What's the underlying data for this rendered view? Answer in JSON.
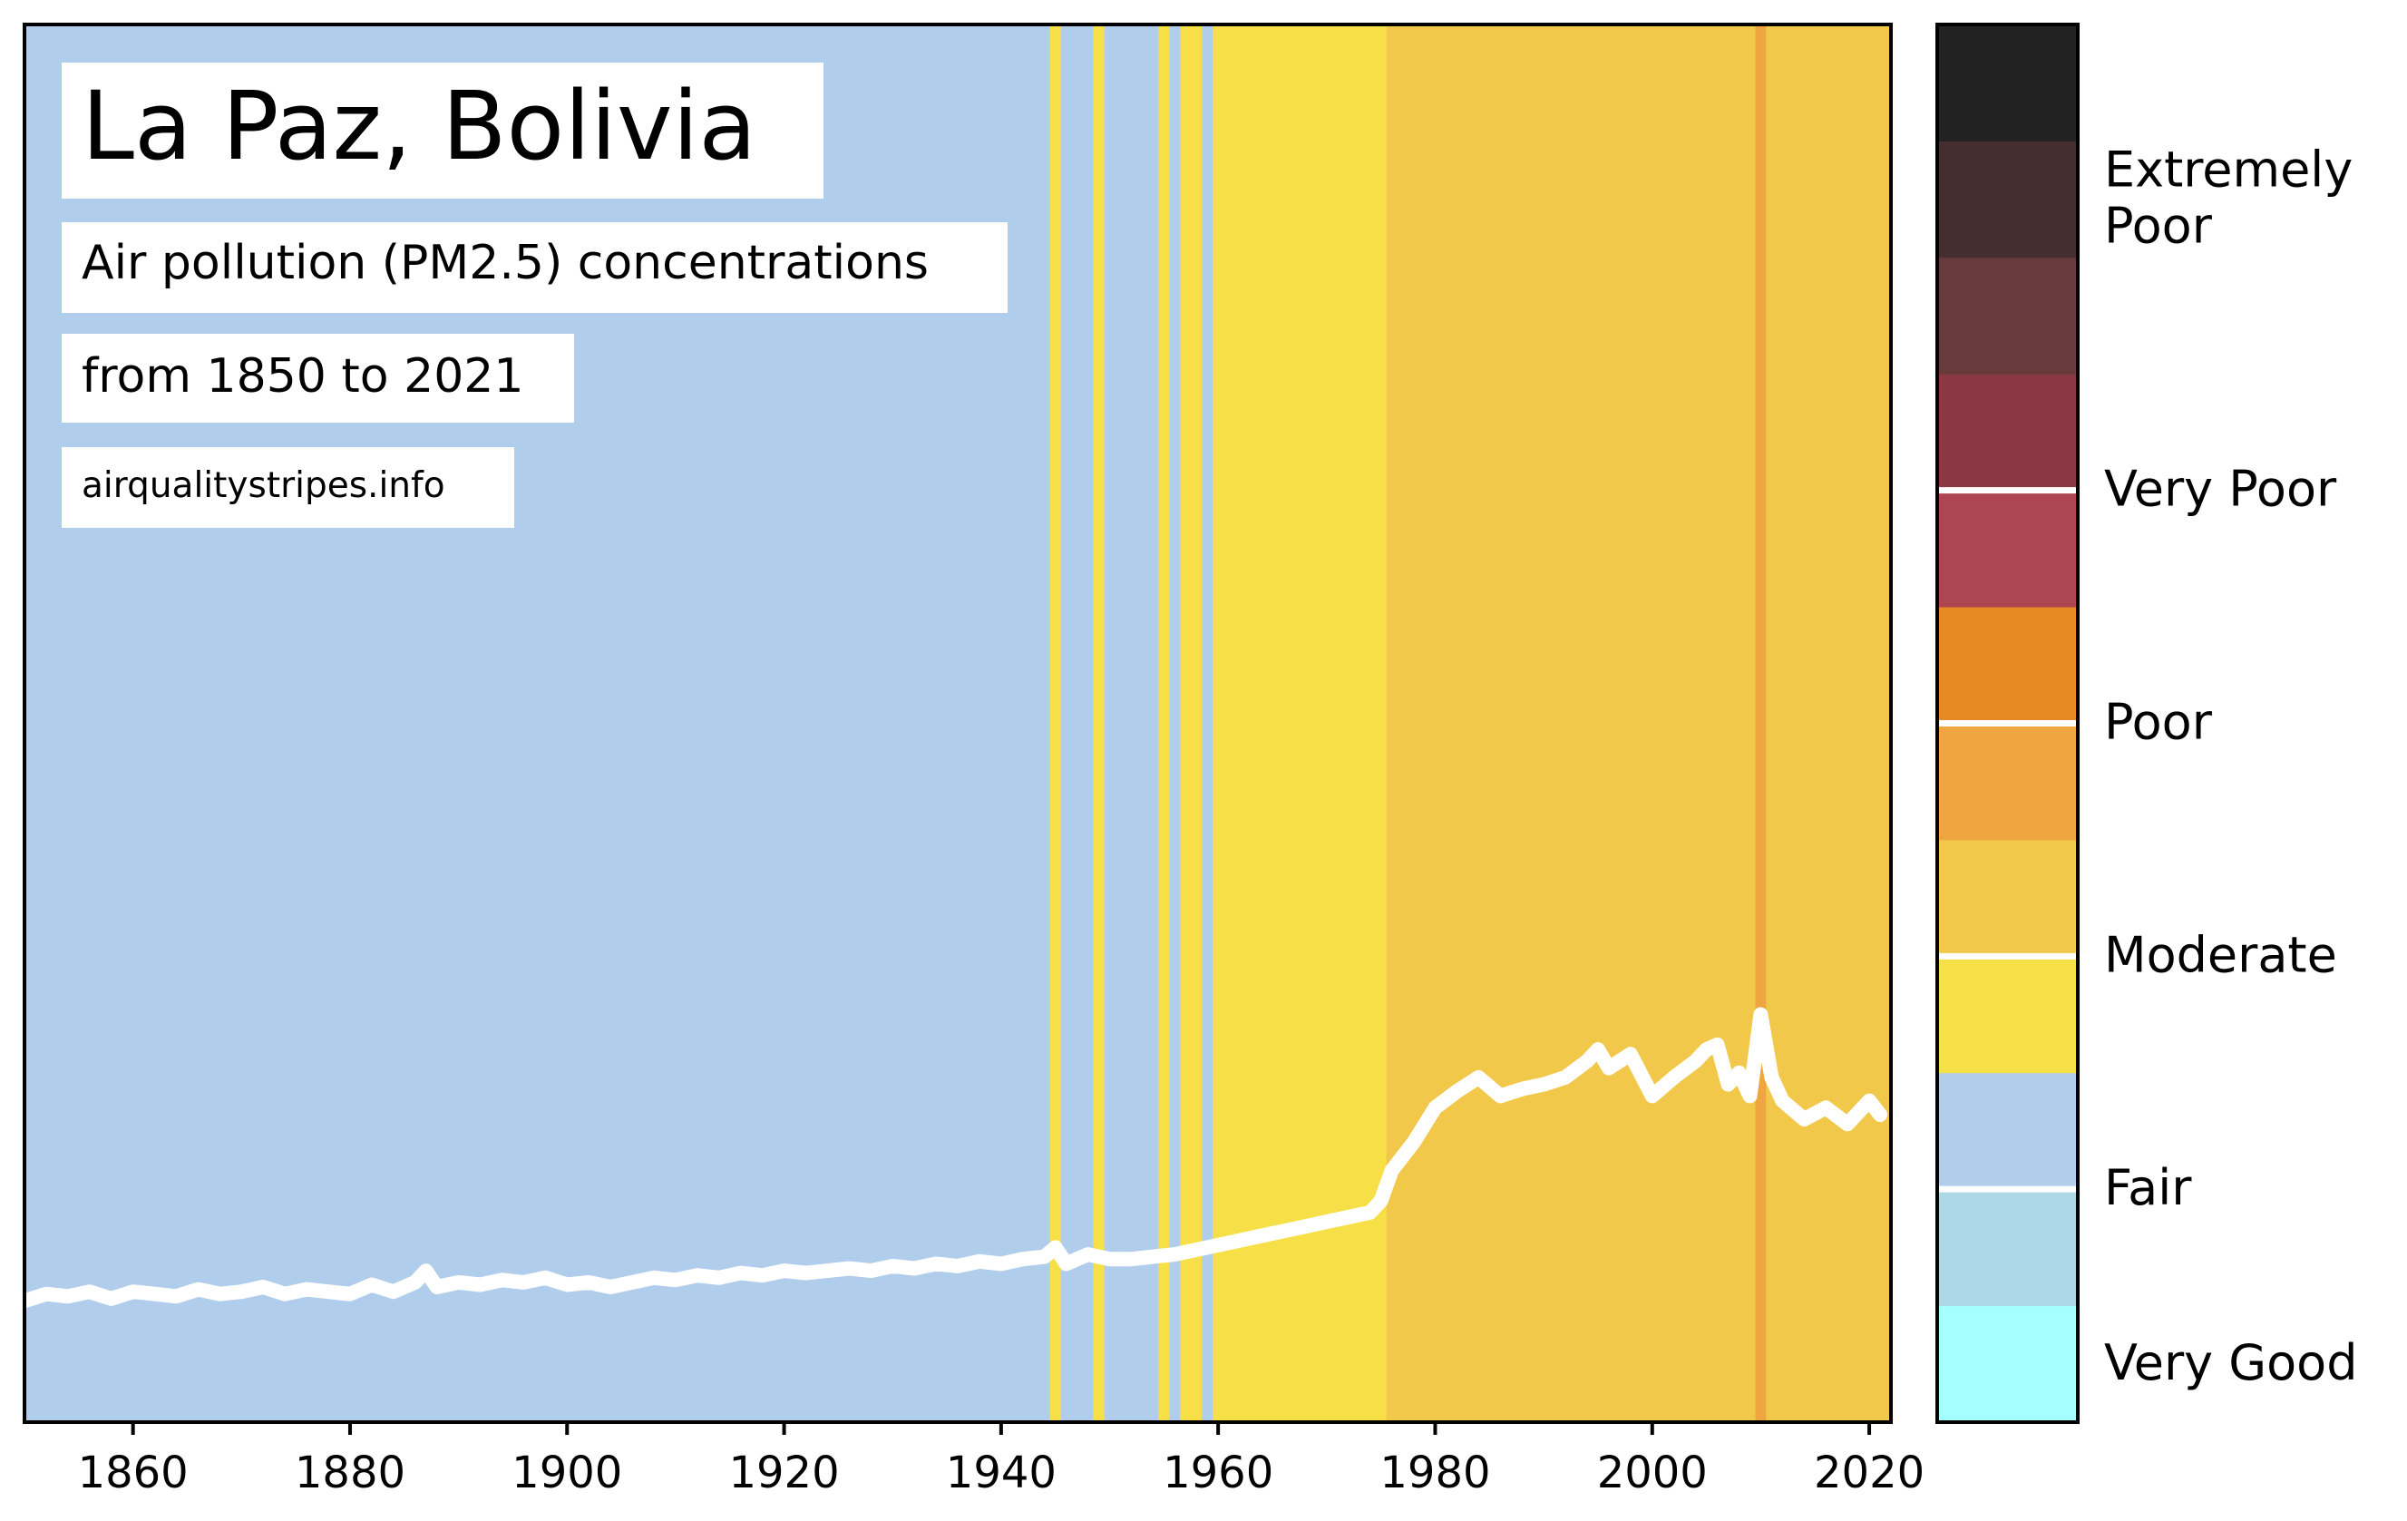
{
  "title": "La Paz, Bolivia",
  "subtitle_line1": "Air pollution (PM2.5) concentrations",
  "subtitle_line2": "from 1850 to 2021",
  "source": "airqualitystripes.info",
  "chart_data": {
    "type": "line",
    "description_x": "year",
    "xlim": [
      1850,
      2022
    ],
    "x_ticks": [
      "1860",
      "1880",
      "1900",
      "1920",
      "1940",
      "1960",
      "1980",
      "2000",
      "2020"
    ],
    "x": [
      1850,
      1852,
      1854,
      1856,
      1858,
      1860,
      1862,
      1864,
      1866,
      1868,
      1870,
      1872,
      1874,
      1876,
      1878,
      1880,
      1882,
      1884,
      1886,
      1887,
      1888,
      1890,
      1892,
      1894,
      1896,
      1898,
      1900,
      1902,
      1904,
      1906,
      1908,
      1910,
      1912,
      1914,
      1916,
      1918,
      1920,
      1922,
      1924,
      1926,
      1928,
      1930,
      1932,
      1934,
      1936,
      1938,
      1940,
      1942,
      1944,
      1945,
      1946,
      1948,
      1950,
      1952,
      1954,
      1956,
      1958,
      1960,
      1962,
      1964,
      1966,
      1968,
      1970,
      1972,
      1974,
      1975,
      1976,
      1978,
      1980,
      1982,
      1984,
      1986,
      1988,
      1990,
      1992,
      1994,
      1995,
      1996,
      1998,
      2000,
      2002,
      2004,
      2005,
      2006,
      2007,
      2008,
      2009,
      2010,
      2011,
      2012,
      2014,
      2016,
      2018,
      2020,
      2021
    ],
    "values": [
      5.2,
      5.5,
      5.4,
      5.6,
      5.3,
      5.6,
      5.5,
      5.4,
      5.7,
      5.5,
      5.6,
      5.8,
      5.5,
      5.7,
      5.6,
      5.5,
      5.9,
      5.6,
      6.0,
      6.5,
      5.8,
      6.0,
      5.9,
      6.1,
      6.0,
      6.2,
      5.9,
      6.0,
      5.8,
      6.0,
      6.2,
      6.1,
      6.3,
      6.2,
      6.4,
      6.3,
      6.5,
      6.4,
      6.5,
      6.6,
      6.5,
      6.7,
      6.6,
      6.8,
      6.7,
      6.9,
      6.8,
      7.0,
      7.1,
      7.5,
      6.8,
      7.2,
      7.0,
      7.0,
      7.1,
      7.2,
      7.4,
      7.6,
      7.8,
      8.0,
      8.2,
      8.4,
      8.6,
      8.8,
      9.0,
      9.5,
      10.8,
      12.0,
      13.5,
      14.2,
      14.8,
      14.0,
      14.3,
      14.5,
      14.8,
      15.5,
      16.0,
      15.2,
      15.8,
      14.0,
      14.8,
      15.5,
      16.0,
      16.2,
      14.5,
      15.0,
      14.0,
      17.5,
      14.8,
      13.8,
      13.0,
      13.5,
      12.8,
      13.8,
      13.2
    ],
    "line_color": "#ffffff",
    "stripes": [
      {
        "start": 1850,
        "end": 1944.5,
        "category": "Fair"
      },
      {
        "start": 1944.5,
        "end": 1945.5,
        "category": "Moderate"
      },
      {
        "start": 1945.5,
        "end": 1948.5,
        "category": "Fair"
      },
      {
        "start": 1948.5,
        "end": 1949.5,
        "category": "Moderate"
      },
      {
        "start": 1949.5,
        "end": 1954.5,
        "category": "Fair"
      },
      {
        "start": 1954.5,
        "end": 1955.5,
        "category": "Moderate"
      },
      {
        "start": 1955.5,
        "end": 1956.5,
        "category": "Fair"
      },
      {
        "start": 1956.5,
        "end": 1958.5,
        "category": "Moderate"
      },
      {
        "start": 1958.5,
        "end": 1959.5,
        "category": "Fair"
      },
      {
        "start": 1959.5,
        "end": 1975.5,
        "category": "Moderate"
      },
      {
        "start": 1975.5,
        "end": 2009.5,
        "category": "Moderate (upper)"
      },
      {
        "start": 2009.5,
        "end": 2010.5,
        "category": "Poor"
      },
      {
        "start": 2010.5,
        "end": 2022,
        "category": "Moderate (upper)"
      }
    ],
    "stripe_colors": {
      "Fair": "#b0ceec",
      "Moderate": "#f7e047",
      "Moderate (upper)": "#f2c84b",
      "Poor": "#f0a640"
    },
    "legend": {
      "segments": [
        "#a6ffff",
        "#add8e6",
        "#b0ceec",
        "#f7e047",
        "#f2c84b",
        "#f0a640",
        "#e88a24",
        "#ae4652",
        "#8a3844",
        "#693a3c",
        "#462e30",
        "#222222"
      ],
      "labels": [
        "Very Good",
        "Fair",
        "Moderate",
        "Poor",
        "Very Poor",
        "Extremely Poor"
      ],
      "label_lines": [
        [
          "Very Good"
        ],
        [
          "Fair"
        ],
        [
          "Moderate"
        ],
        [
          "Poor"
        ],
        [
          "Very Poor"
        ],
        [
          "Extremely",
          "Poor"
        ]
      ]
    }
  }
}
